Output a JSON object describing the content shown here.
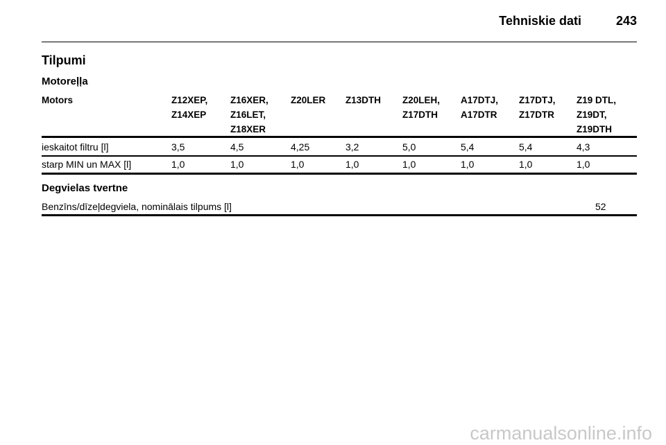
{
  "header": {
    "title": "Tehniskie dati",
    "page": "243"
  },
  "section": {
    "title": "Tilpumi"
  },
  "oil": {
    "title": "Motoreļļa",
    "table": {
      "columns": [
        [
          "Motors"
        ],
        [
          "Z12XEP,",
          "Z14XEP"
        ],
        [
          "Z16XER,",
          "Z16LET,",
          "Z18XER"
        ],
        [
          "Z20LER"
        ],
        [
          "Z13DTH"
        ],
        [
          "Z20LEH,",
          "Z17DTH"
        ],
        [
          "A17DTJ,",
          "A17DTR"
        ],
        [
          "Z17DTJ,",
          "Z17DTR"
        ],
        [
          "Z19 DTL,",
          "Z19DT,",
          "Z19DTH"
        ]
      ],
      "rows": [
        [
          "ieskaitot filtru [l]",
          "3,5",
          "4,5",
          "4,25",
          "3,2",
          "5,0",
          "5,4",
          "5,4",
          "4,3"
        ],
        [
          "starp MIN un MAX [l]",
          "1,0",
          "1,0",
          "1,0",
          "1,0",
          "1,0",
          "1,0",
          "1,0",
          "1,0"
        ]
      ]
    }
  },
  "fuel": {
    "title": "Degvielas tvertne",
    "rows": [
      [
        "Benzīns/dīzeļdegviela, nominālais tilpums [l]",
        "52"
      ]
    ]
  },
  "watermark": "carmanualsonline.info"
}
